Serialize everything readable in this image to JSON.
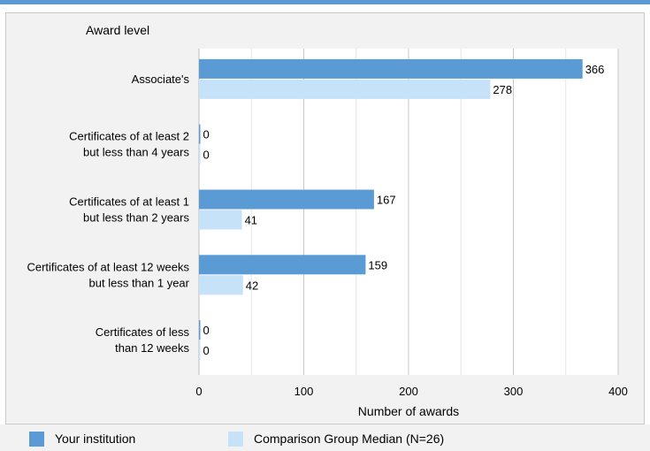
{
  "colors": {
    "accent_bar": "#5b9bd5",
    "series1": "#5b9bd5",
    "series2": "#c6e2f8",
    "panel_bg": "#f2f2f2",
    "plot_bg": "#ffffff",
    "grid": "#c8c8c8"
  },
  "chart_data": {
    "type": "bar",
    "orientation": "horizontal",
    "title": "",
    "ylabel": "Award level",
    "xlabel": "Number of awards",
    "xlim": [
      0,
      400
    ],
    "xticks": [
      "0",
      "100",
      "200",
      "300",
      "400"
    ],
    "categories": [
      [
        "Associate's"
      ],
      [
        "Certificates of at least 2",
        "but less than 4 years"
      ],
      [
        "Certificates of at least 1",
        "but  less than 2 years"
      ],
      [
        "Certificates of at least 12 weeks",
        "but less than 1 year"
      ],
      [
        "Certificates of less",
        "than 12 weeks"
      ]
    ],
    "series": [
      {
        "name": "Your institution",
        "values": [
          366,
          0,
          167,
          159,
          0
        ],
        "labels": [
          "366",
          "0",
          "167",
          "159",
          "0"
        ]
      },
      {
        "name": "Comparison Group Median (N=26)",
        "values": [
          278,
          0,
          41,
          42,
          0
        ],
        "labels": [
          "278",
          "0",
          "41",
          "42",
          "0"
        ]
      }
    ],
    "grid": true,
    "legend_position": "bottom"
  }
}
